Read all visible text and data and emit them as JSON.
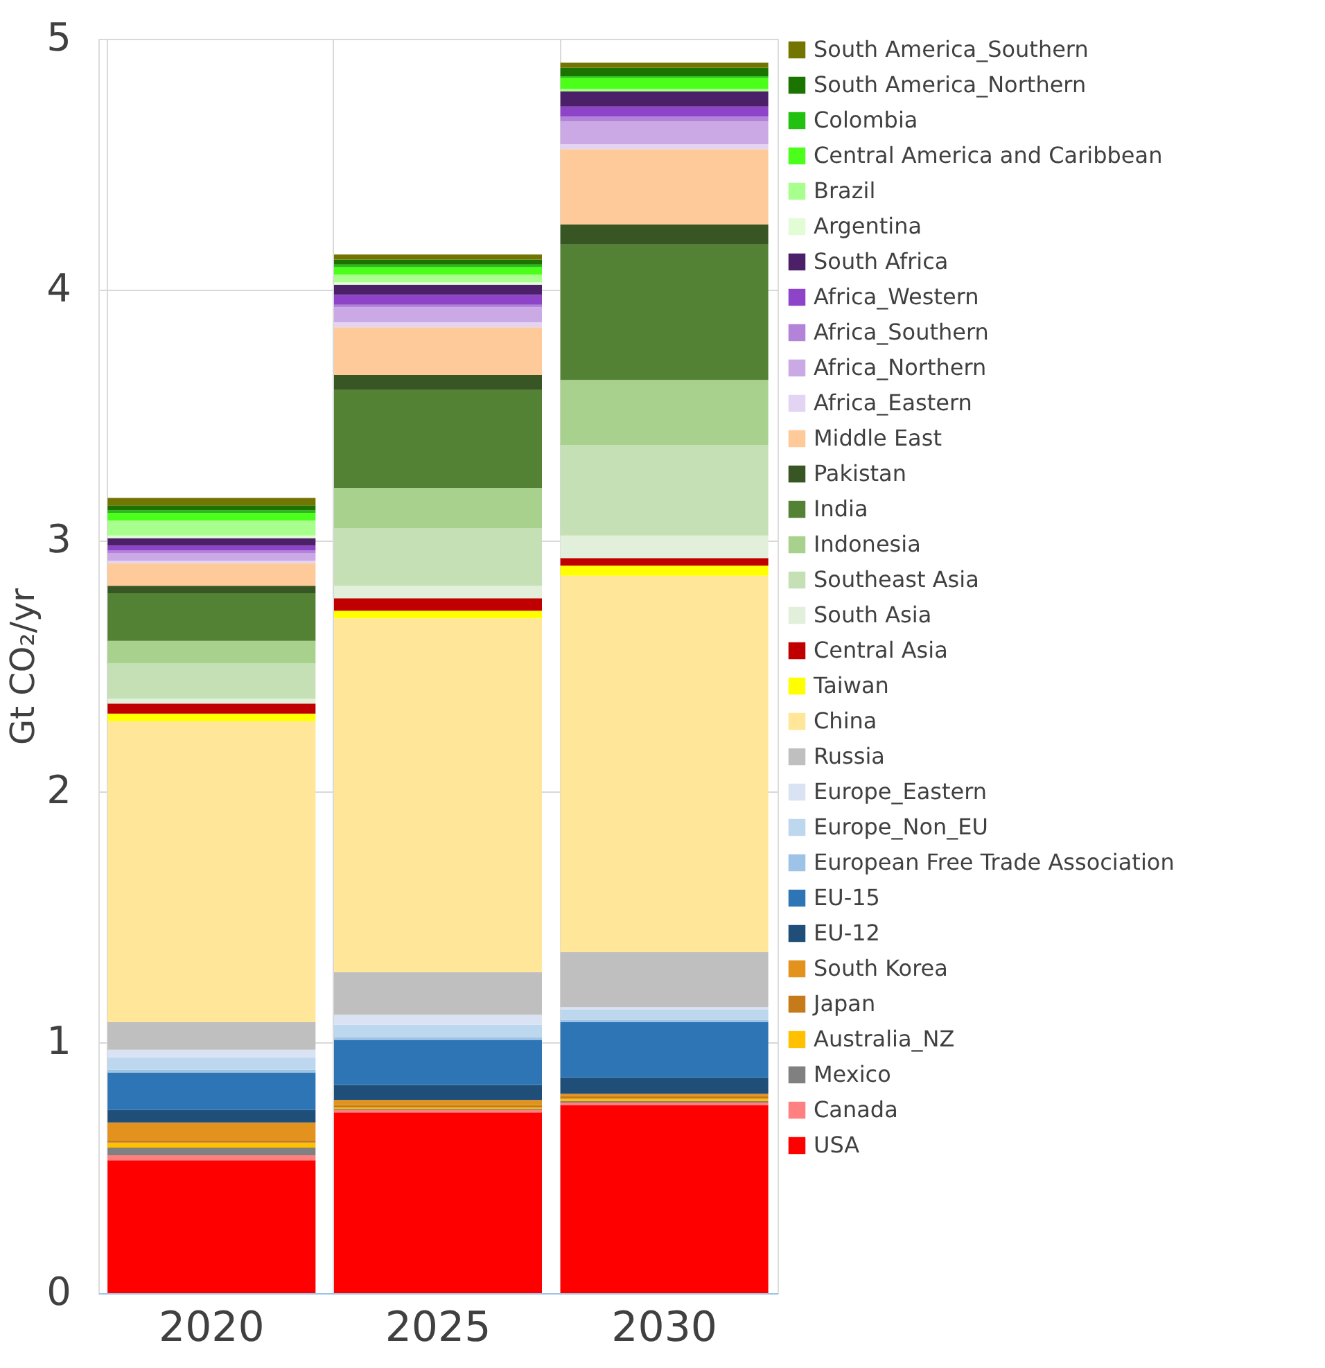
{
  "chart_data": {
    "type": "bar",
    "stacked": true,
    "ylabel": "Gt CO₂/yr",
    "categories": [
      "2020",
      "2025",
      "2030"
    ],
    "ylim": [
      0,
      5
    ],
    "yticks": [
      0,
      1,
      2,
      3,
      4,
      5
    ],
    "grid": true,
    "legend": "right",
    "series": [
      {
        "name": "USA",
        "color": "#ff0000",
        "values": [
          0.53,
          0.72,
          0.75
        ]
      },
      {
        "name": "Canada",
        "color": "#ff8080",
        "values": [
          0.02,
          0.01,
          0.01
        ]
      },
      {
        "name": "Mexico",
        "color": "#808080",
        "values": [
          0.03,
          0.005,
          0.005
        ]
      },
      {
        "name": "Australia_NZ",
        "color": "#ffc000",
        "values": [
          0.02,
          0.005,
          0.01
        ]
      },
      {
        "name": "Japan",
        "color": "#c67a1a",
        "values": [
          0.01,
          0.01,
          0.01
        ]
      },
      {
        "name": "South Korea",
        "color": "#e3921e",
        "values": [
          0.07,
          0.02,
          0.01
        ]
      },
      {
        "name": "EU-12",
        "color": "#1f4e79",
        "values": [
          0.05,
          0.06,
          0.065
        ]
      },
      {
        "name": "EU-15",
        "color": "#2e75b6",
        "values": [
          0.15,
          0.18,
          0.22
        ]
      },
      {
        "name": "European Free Trade Association",
        "color": "#9dc3e6",
        "values": [
          0.01,
          0.01,
          0.01
        ]
      },
      {
        "name": "Europe_Non_EU",
        "color": "#bdd7ee",
        "values": [
          0.05,
          0.05,
          0.04
        ]
      },
      {
        "name": "Europe_Eastern",
        "color": "#dae3f3",
        "values": [
          0.03,
          0.04,
          0.01
        ]
      },
      {
        "name": "Russia",
        "color": "#bfbfbf",
        "values": [
          0.11,
          0.17,
          0.22
        ]
      },
      {
        "name": "China",
        "color": "#ffe699",
        "values": [
          1.2,
          1.41,
          1.5
        ]
      },
      {
        "name": "Taiwan",
        "color": "#ffff00",
        "values": [
          0.03,
          0.03,
          0.04
        ]
      },
      {
        "name": "Central Asia",
        "color": "#c00000",
        "values": [
          0.04,
          0.05,
          0.03
        ]
      },
      {
        "name": "South Asia",
        "color": "#e2efda",
        "values": [
          0.02,
          0.05,
          0.09
        ]
      },
      {
        "name": "Southeast Asia",
        "color": "#c5e0b4",
        "values": [
          0.14,
          0.23,
          0.36
        ]
      },
      {
        "name": "Indonesia",
        "color": "#a9d18e",
        "values": [
          0.09,
          0.16,
          0.26
        ]
      },
      {
        "name": "India",
        "color": "#548235",
        "values": [
          0.19,
          0.39,
          0.54
        ]
      },
      {
        "name": "Pakistan",
        "color": "#375623",
        "values": [
          0.03,
          0.06,
          0.08
        ]
      },
      {
        "name": "Middle East",
        "color": "#ffca99",
        "values": [
          0.09,
          0.19,
          0.3
        ]
      },
      {
        "name": "Africa_Eastern",
        "color": "#e4d4f4",
        "values": [
          0.01,
          0.02,
          0.02
        ]
      },
      {
        "name": "Africa_Northern",
        "color": "#cba9e4",
        "values": [
          0.03,
          0.06,
          0.09
        ]
      },
      {
        "name": "Africa_Southern",
        "color": "#b383da",
        "values": [
          0.01,
          0.01,
          0.02
        ]
      },
      {
        "name": "Africa_Western",
        "color": "#8e44c8",
        "values": [
          0.02,
          0.04,
          0.04
        ]
      },
      {
        "name": "South Africa",
        "color": "#4b2069",
        "values": [
          0.03,
          0.04,
          0.06
        ]
      },
      {
        "name": "Argentina",
        "color": "#e2fcd5",
        "values": [
          0.01,
          0.01,
          null
        ]
      },
      {
        "name": "Brazil",
        "color": "#a9ff8e",
        "values": [
          0.06,
          0.03,
          0.01
        ]
      },
      {
        "name": "Central America and Caribbean",
        "color": "#4cff1a",
        "values": [
          0.03,
          0.03,
          0.045
        ]
      },
      {
        "name": "Colombia",
        "color": "#22c011",
        "values": [
          0.01,
          0.01,
          0.005
        ]
      },
      {
        "name": "South America_Northern",
        "color": "#1b7300",
        "values": [
          0.02,
          0.02,
          0.035
        ]
      },
      {
        "name": "South America_Southern",
        "color": "#727600",
        "values": [
          0.03,
          0.02,
          0.02
        ]
      }
    ]
  }
}
